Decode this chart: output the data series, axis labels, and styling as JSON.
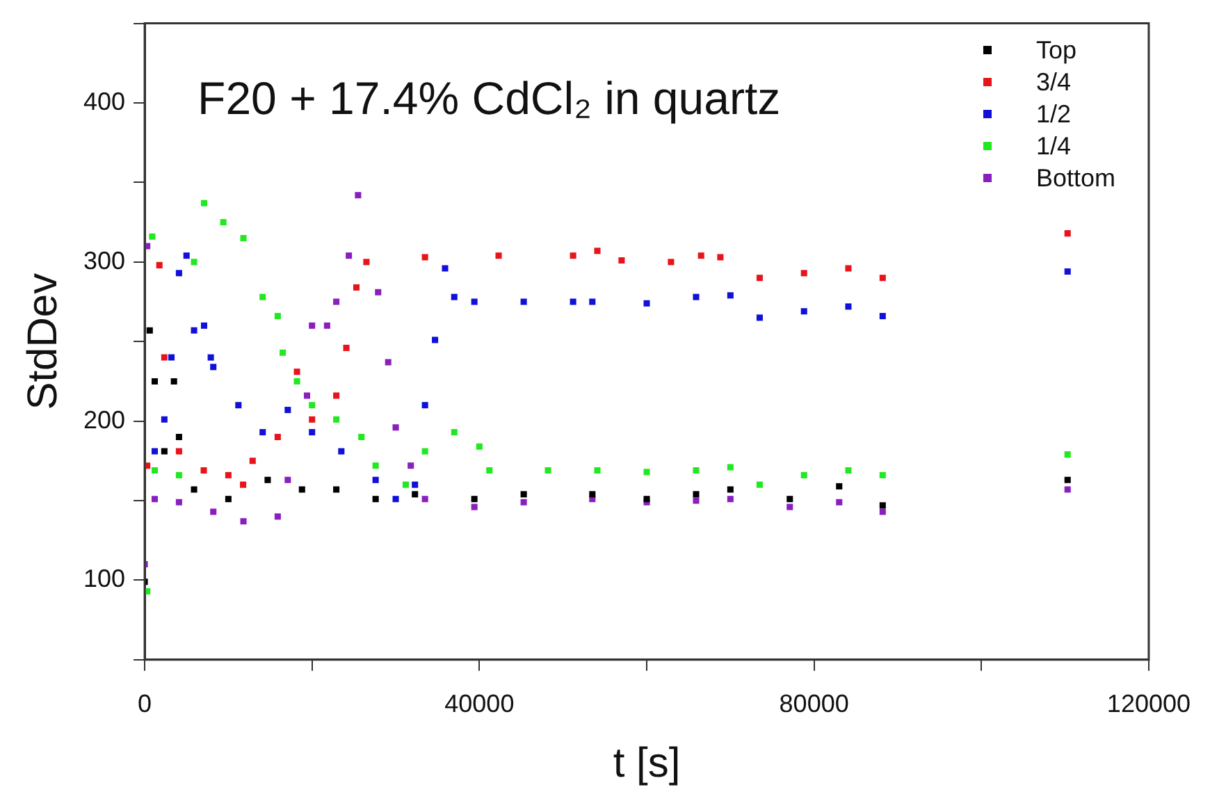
{
  "chart_data": {
    "type": "scatter",
    "title": "F20 + 17.4% CdCl₂ in quartz",
    "xlabel": "t [s]",
    "ylabel": "StdDev",
    "xlim": [
      0,
      120000
    ],
    "xticks": [
      0,
      {
        "value": 20000,
        "label": null
      },
      40000,
      {
        "value": 60000,
        "label": null
      },
      80000,
      {
        "value": 100000,
        "label": null
      },
      120000
    ],
    "ylim": [
      50,
      450
    ],
    "yticks": [
      {
        "value": 50,
        "label": null
      },
      100,
      {
        "value": 150,
        "label": null
      },
      200,
      {
        "value": 250,
        "label": null
      },
      300,
      {
        "value": 350,
        "label": null
      },
      400,
      {
        "value": 450,
        "label": null
      }
    ],
    "grid": false,
    "legend": "top right",
    "marker": "square",
    "series": [
      {
        "name": "Top",
        "color": "#000000",
        "x": [
          0,
          600,
          1200,
          2350,
          3500,
          4100,
          5900,
          10000,
          14700,
          18800,
          22900,
          27600,
          32300,
          39400,
          45300,
          53500,
          60000,
          65900,
          70000,
          77100,
          83000,
          88200,
          110300
        ],
        "values": [
          99,
          257,
          225,
          181,
          225,
          190,
          157,
          151,
          163,
          157,
          157,
          151,
          154,
          151,
          154,
          154,
          151,
          154,
          157,
          151,
          159,
          147,
          163
        ]
      },
      {
        "name": "3/4",
        "color": "#e8141c",
        "x": [
          300,
          1760,
          2350,
          4100,
          7060,
          10000,
          11760,
          12900,
          15900,
          18200,
          20000,
          22900,
          24100,
          25300,
          26500,
          33500,
          42300,
          51200,
          54100,
          57000,
          62900,
          66500,
          68800,
          73500,
          78800,
          84100,
          88200,
          110300
        ],
        "values": [
          172,
          298,
          240,
          181,
          169,
          166,
          160,
          175,
          190,
          231,
          201,
          216,
          246,
          284,
          300,
          303,
          304,
          304,
          307,
          301,
          300,
          304,
          303,
          290,
          293,
          296,
          290,
          318
        ]
      },
      {
        "name": "1/2",
        "color": "#1010d8",
        "x": [
          1200,
          2350,
          3200,
          4100,
          5000,
          5900,
          7100,
          7900,
          8200,
          11200,
          14100,
          17100,
          20000,
          23500,
          27600,
          30000,
          32300,
          33500,
          34700,
          35900,
          37000,
          39400,
          45300,
          51200,
          53500,
          60000,
          65900,
          70000,
          73500,
          78800,
          84100,
          88200,
          110300
        ],
        "values": [
          181,
          201,
          240,
          293,
          304,
          257,
          260,
          240,
          234,
          210,
          193,
          207,
          193,
          181,
          163,
          151,
          160,
          210,
          251,
          296,
          278,
          275,
          275,
          275,
          275,
          274,
          278,
          279,
          265,
          269,
          272,
          266,
          294
        ]
      },
      {
        "name": "1/4",
        "color": "#22e822",
        "x": [
          300,
          900,
          1200,
          4100,
          5900,
          7100,
          9400,
          11800,
          14100,
          15900,
          16500,
          18200,
          20000,
          22900,
          25900,
          27600,
          31200,
          33500,
          37000,
          40000,
          41200,
          48200,
          54100,
          60000,
          65900,
          70000,
          73500,
          78800,
          84100,
          88200,
          110300
        ],
        "values": [
          93,
          316,
          169,
          166,
          300,
          337,
          325,
          315,
          278,
          266,
          243,
          225,
          210,
          201,
          190,
          172,
          160,
          181,
          193,
          184,
          169,
          169,
          169,
          168,
          169,
          171,
          160,
          166,
          169,
          166,
          179
        ]
      },
      {
        "name": "Bottom",
        "color": "#8a1fc0",
        "x": [
          0,
          300,
          1200,
          4100,
          8200,
          11800,
          15900,
          17100,
          19400,
          20000,
          21800,
          22900,
          24400,
          25500,
          27900,
          29100,
          30000,
          31800,
          33500,
          39400,
          45300,
          53500,
          60000,
          65900,
          70000,
          77100,
          83000,
          88200,
          110300
        ],
        "values": [
          110,
          310,
          151,
          149,
          143,
          137,
          140,
          163,
          216,
          260,
          260,
          275,
          304,
          342,
          281,
          237,
          196,
          172,
          151,
          146,
          149,
          151,
          149,
          150,
          151,
          146,
          149,
          143,
          157
        ]
      }
    ]
  }
}
